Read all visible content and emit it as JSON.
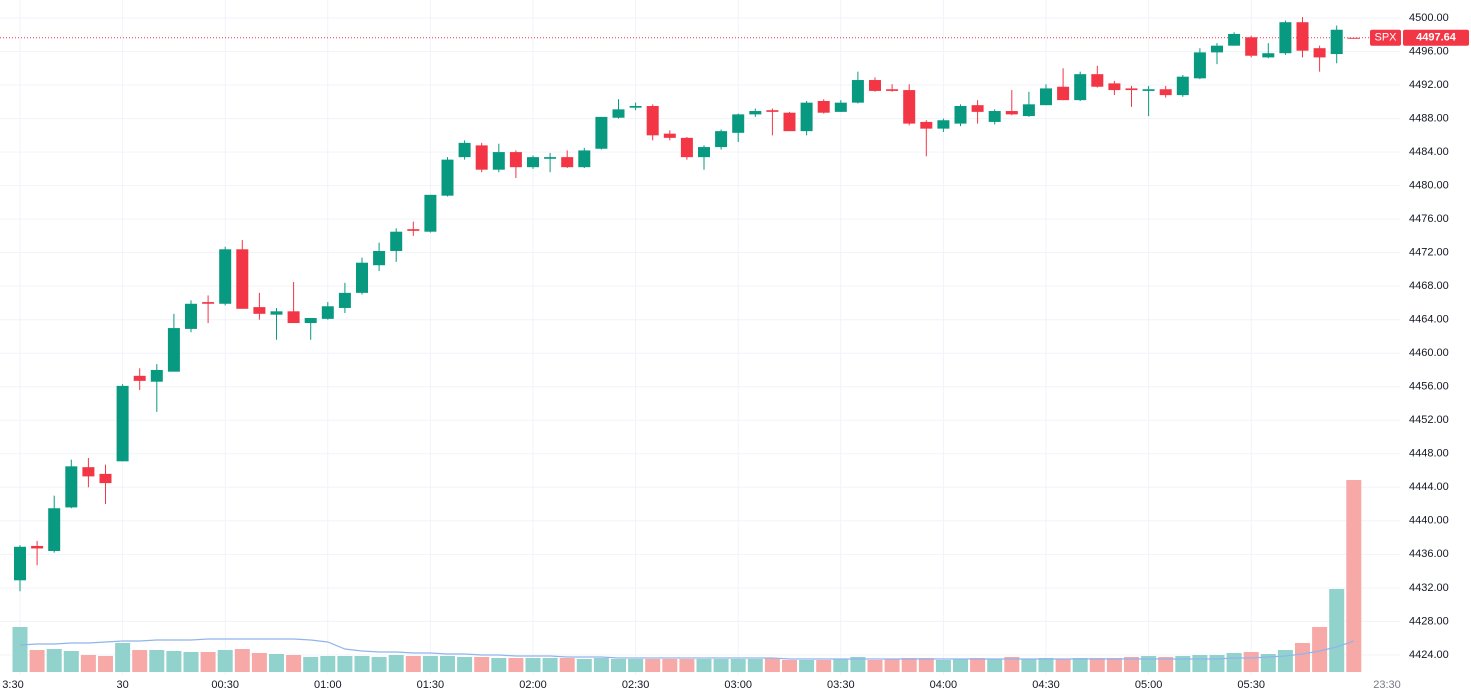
{
  "chart_data": {
    "type": "candlestick",
    "symbol": "SPX",
    "last_price": 4497.64,
    "crosshair_time": "23:30",
    "categories": [
      "3:30",
      null,
      null,
      null,
      null,
      null,
      "30",
      null,
      null,
      null,
      null,
      null,
      "00:30",
      null,
      null,
      null,
      null,
      null,
      "01:00",
      null,
      null,
      null,
      null,
      null,
      "01:30",
      null,
      null,
      null,
      null,
      null,
      "02:00",
      null,
      null,
      null,
      null,
      null,
      "02:30",
      null,
      null,
      null,
      null,
      null,
      "03:00",
      null,
      null,
      null,
      null,
      null,
      "03:30",
      null,
      null,
      null,
      null,
      null,
      "04:00",
      null,
      null,
      null,
      null,
      null,
      "04:30",
      null,
      null,
      null,
      null,
      null,
      "05:00",
      null,
      null,
      null,
      null,
      null,
      "05:30",
      null,
      null,
      null,
      null,
      null,
      null
    ],
    "open": [
      4432.9,
      4437.0,
      4436.4,
      4441.6,
      4446.4,
      4445.6,
      4447.1,
      4457.3,
      4456.6,
      4457.8,
      4462.9,
      4466.1,
      4465.9,
      4472.4,
      4465.5,
      4464.6,
      4465.0,
      4463.6,
      4464.1,
      4465.4,
      4467.2,
      4470.5,
      4472.2,
      4474.8,
      4474.5,
      4478.8,
      4483.4,
      4484.8,
      4481.9,
      4484.0,
      4482.2,
      4483.2,
      4483.4,
      4482.2,
      4484.4,
      4488.1,
      4489.3,
      4489.5,
      4486.2,
      4485.7,
      4483.4,
      4484.6,
      4486.3,
      4488.5,
      4489.0,
      4488.7,
      4486.5,
      4490.1,
      4488.8,
      4489.9,
      4492.6,
      4491.5,
      4491.4,
      4487.6,
      4486.8,
      4487.4,
      4489.6,
      4487.6,
      4488.9,
      4488.3,
      4489.6,
      4491.8,
      4490.2,
      4493.3,
      4492.2,
      4491.6,
      4491.3,
      4491.5,
      4490.8,
      4492.8,
      4495.9,
      4496.7,
      4497.7,
      4495.3,
      4495.8,
      4499.5,
      4496.4,
      4495.7,
      4497.64
    ],
    "high": [
      4437.1,
      4437.6,
      4443.0,
      4447.3,
      4447.5,
      4446.7,
      4456.3,
      4458.2,
      4458.7,
      4464.7,
      4466.3,
      4466.9,
      4472.7,
      4473.5,
      4467.2,
      4465.4,
      4468.5,
      4464.2,
      4466.1,
      4468.4,
      4471.4,
      4473.2,
      4474.9,
      4475.7,
      4478.9,
      4483.4,
      4485.4,
      4485.1,
      4485.0,
      4484.2,
      4483.6,
      4483.9,
      4484.2,
      4484.5,
      4488.2,
      4490.3,
      4489.9,
      4489.7,
      4486.6,
      4485.8,
      4484.8,
      4486.7,
      4488.6,
      4489.2,
      4489.2,
      4488.8,
      4490.1,
      4490.3,
      4490.2,
      4493.6,
      4492.9,
      4492.1,
      4492.1,
      4487.8,
      4488.0,
      4489.7,
      4490.2,
      4489.1,
      4491.4,
      4491.2,
      4492.1,
      4494.0,
      4493.6,
      4494.3,
      4492.5,
      4491.9,
      4491.9,
      4491.9,
      4493.2,
      4496.4,
      4497.0,
      4498.3,
      4497.9,
      4497.0,
      4499.7,
      4500.1,
      4496.7,
      4499.1,
      4497.64
    ],
    "low": [
      4431.6,
      4434.7,
      4436.2,
      4441.5,
      4444.0,
      4442.0,
      4447.1,
      4455.6,
      4453.0,
      4457.8,
      4462.5,
      4463.6,
      4465.7,
      4465.3,
      4464.0,
      4461.6,
      4463.6,
      4461.6,
      4464.0,
      4464.8,
      4467.0,
      4469.8,
      4470.9,
      4474.0,
      4474.4,
      4478.7,
      4483.1,
      4481.6,
      4481.6,
      4480.9,
      4482.0,
      4481.6,
      4482.1,
      4482.1,
      4484.3,
      4488.0,
      4489.0,
      4485.4,
      4485.4,
      4483.1,
      4481.9,
      4484.3,
      4485.2,
      4488.2,
      4486.0,
      4486.5,
      4486.0,
      4488.6,
      4488.8,
      4489.8,
      4491.2,
      4491.2,
      4487.2,
      4483.5,
      4486.4,
      4487.1,
      4487.4,
      4487.3,
      4488.4,
      4488.2,
      4489.6,
      4490.2,
      4490.1,
      4491.7,
      4490.8,
      4489.4,
      4488.3,
      4490.5,
      4490.6,
      4492.7,
      4494.5,
      4496.7,
      4495.3,
      4495.2,
      4495.6,
      4495.3,
      4493.6,
      4494.6,
      4497.64
    ],
    "close": [
      4436.9,
      4436.7,
      4441.5,
      4446.5,
      4445.3,
      4444.5,
      4456.1,
      4456.7,
      4458.0,
      4463.0,
      4465.9,
      4465.9,
      4472.4,
      4465.3,
      4464.7,
      4465.0,
      4463.6,
      4464.2,
      4465.6,
      4467.2,
      4470.8,
      4472.2,
      4474.5,
      4474.6,
      4478.9,
      4483.1,
      4485.1,
      4481.9,
      4484.0,
      4482.2,
      4483.4,
      4483.4,
      4482.2,
      4484.2,
      4488.2,
      4489.1,
      4489.5,
      4486.0,
      4485.7,
      4483.4,
      4484.6,
      4486.5,
      4488.5,
      4488.9,
      4488.8,
      4486.5,
      4489.9,
      4488.7,
      4489.9,
      4492.6,
      4491.3,
      4491.3,
      4487.4,
      4486.8,
      4487.8,
      4489.5,
      4488.8,
      4488.9,
      4488.5,
      4489.7,
      4491.6,
      4490.2,
      4493.3,
      4491.8,
      4491.4,
      4491.4,
      4491.5,
      4490.8,
      4493.0,
      4495.9,
      4496.7,
      4498.1,
      4495.5,
      4495.8,
      4499.5,
      4496.1,
      4495.3,
      4498.6,
      4497.64
    ],
    "volume": [
      45,
      22,
      23,
      21,
      17,
      16,
      29,
      22,
      22,
      21,
      20,
      20,
      22,
      23,
      19,
      18,
      17,
      15,
      16,
      16,
      16,
      15,
      17,
      16,
      16,
      16,
      15,
      15,
      14,
      14,
      14,
      14,
      14,
      13,
      14,
      13,
      13,
      13,
      13,
      13,
      13,
      13,
      13,
      13,
      14,
      12,
      12,
      12,
      13,
      15,
      12,
      13,
      14,
      14,
      12,
      13,
      14,
      13,
      15,
      13,
      14,
      13,
      14,
      14,
      14,
      15,
      16,
      15,
      16,
      17,
      17,
      19,
      20,
      18,
      22,
      29,
      45,
      83,
      192
    ],
    "volume_ma": [
      27,
      28,
      28,
      29,
      29,
      30,
      31,
      31,
      32,
      32,
      32,
      33,
      33,
      33,
      33,
      33,
      33,
      32,
      30,
      23,
      21,
      20,
      20,
      19,
      19,
      18,
      18,
      17,
      17,
      16,
      16,
      16,
      15,
      15,
      15,
      14,
      14,
      14,
      14,
      14,
      14,
      14,
      14,
      14,
      14,
      13,
      13,
      13,
      13,
      13,
      13,
      13,
      13,
      13,
      13,
      13,
      13,
      13,
      13,
      13,
      13,
      13,
      13,
      13,
      13,
      13,
      13,
      13,
      13,
      13,
      13,
      14,
      14,
      15,
      16,
      18,
      21,
      25,
      31
    ],
    "ylim": [
      4421.6,
      4502.15
    ],
    "volume_ylim": [
      0,
      200
    ],
    "yticks": [
      {
        "value": 4500,
        "label": "4500.00"
      },
      {
        "value": 4496,
        "label": "4496.00"
      },
      {
        "value": 4492,
        "label": "4492.00"
      },
      {
        "value": 4488,
        "label": "4488.00"
      },
      {
        "value": 4484,
        "label": "4484.00"
      },
      {
        "value": 4480,
        "label": "4480.00"
      },
      {
        "value": 4476,
        "label": "4476.00"
      },
      {
        "value": 4472,
        "label": "4472.00"
      },
      {
        "value": 4468,
        "label": "4468.00"
      },
      {
        "value": 4464,
        "label": "4464.00"
      },
      {
        "value": 4460,
        "label": "4460.00"
      },
      {
        "value": 4456,
        "label": "4456.00"
      },
      {
        "value": 4452,
        "label": "4452.00"
      },
      {
        "value": 4448,
        "label": "4448.00"
      },
      {
        "value": 4444,
        "label": "4444.00"
      },
      {
        "value": 4440,
        "label": "4440.00"
      },
      {
        "value": 4436,
        "label": "4436.00"
      },
      {
        "value": 4432,
        "label": "4432.00"
      },
      {
        "value": 4428,
        "label": "4428.00"
      },
      {
        "value": 4424,
        "label": "4424.00"
      }
    ],
    "up_color": "#089981",
    "down_color": "#f23645",
    "volume_up_color": "#92d2cc",
    "volume_down_color": "#f7a9a7",
    "volume_ma_color": "#90b5ec",
    "grid": true
  }
}
